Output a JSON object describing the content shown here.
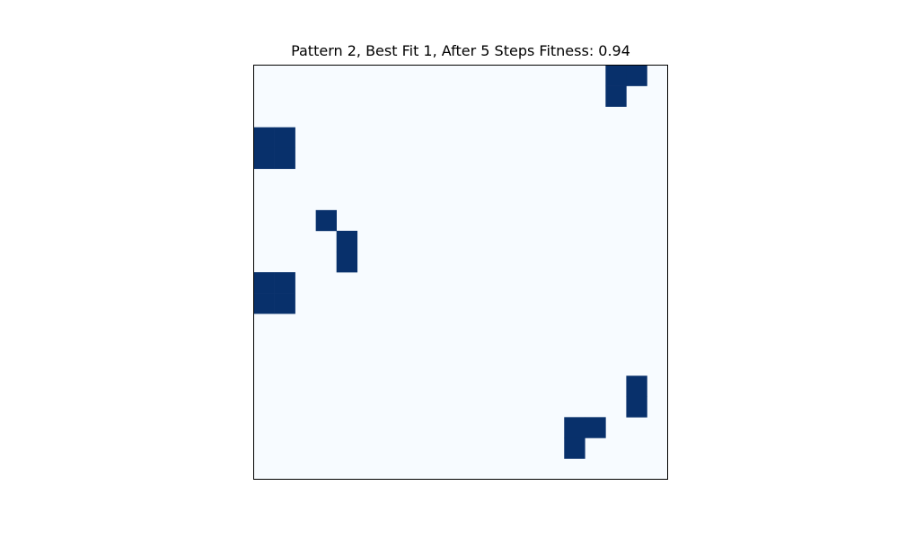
{
  "chart_data": {
    "type": "heatmap",
    "title": "Pattern 2, Best Fit 1, After 5 Steps Fitness: 0.94",
    "rows": 20,
    "cols": 20,
    "colors": {
      "off": "#f7fbff",
      "on": "#08306b",
      "frame": "#000000"
    },
    "active_cells": [
      [
        0,
        17
      ],
      [
        0,
        18
      ],
      [
        1,
        17
      ],
      [
        3,
        0
      ],
      [
        3,
        1
      ],
      [
        4,
        0
      ],
      [
        4,
        1
      ],
      [
        7,
        3
      ],
      [
        8,
        4
      ],
      [
        9,
        4
      ],
      [
        10,
        0
      ],
      [
        10,
        1
      ],
      [
        11,
        0
      ],
      [
        11,
        1
      ],
      [
        15,
        18
      ],
      [
        16,
        18
      ],
      [
        17,
        15
      ],
      [
        17,
        16
      ],
      [
        18,
        15
      ]
    ]
  }
}
